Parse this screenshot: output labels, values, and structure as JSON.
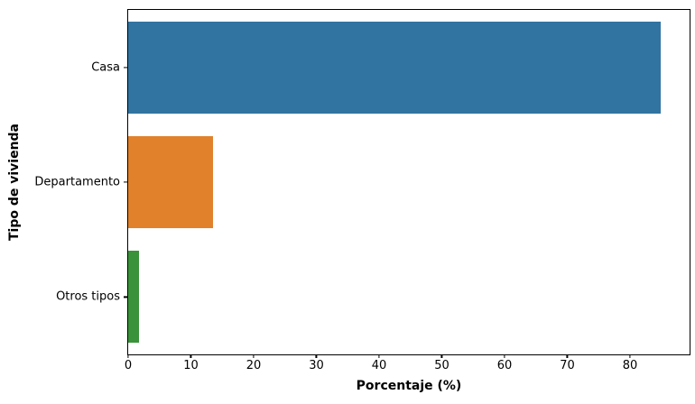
{
  "chart_data": {
    "type": "bar",
    "orientation": "horizontal",
    "title": "",
    "xlabel": "Porcentaje (%)",
    "ylabel": "Tipo de vivienda",
    "categories": [
      "Casa",
      "Departamento",
      "Otros tipos"
    ],
    "values": [
      84.9,
      13.5,
      1.7
    ],
    "bar_colors": [
      "#3274A1",
      "#E1812C",
      "#3A923A"
    ],
    "xticks": [
      0,
      10,
      20,
      30,
      40,
      50,
      60,
      70,
      80
    ],
    "xlim": [
      0,
      89.5
    ],
    "grid": false,
    "legend": null,
    "background": "#ffffff",
    "spine_color": "#000000",
    "bar_band_fraction": 0.8
  }
}
